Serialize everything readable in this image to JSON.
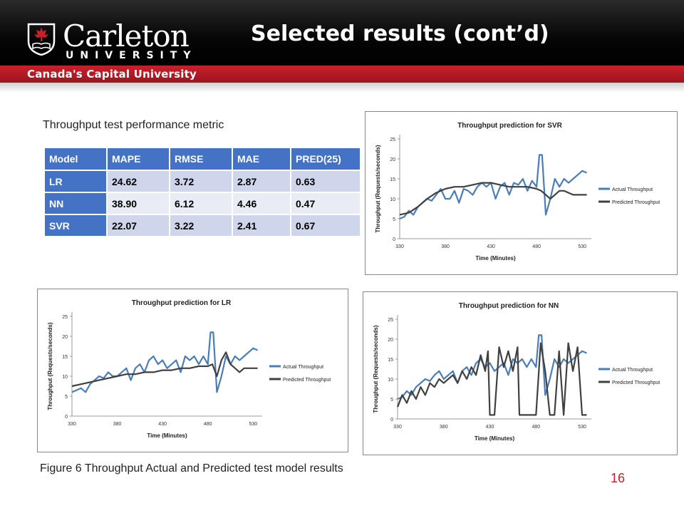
{
  "header": {
    "title": "Selected results (cont’d)",
    "logo_name": "Carleton",
    "logo_sub": "UNIVERSITY",
    "tagline": "Canada's Capital University"
  },
  "table": {
    "caption": "Throughput test performance metric",
    "headers": [
      "Model",
      "MAPE",
      "RMSE",
      "MAE",
      "PRED(25)"
    ],
    "rows": [
      [
        "LR",
        "24.62",
        "3.72",
        "2.87",
        "0.63"
      ],
      [
        "NN",
        "38.90",
        "6.12",
        "4.46",
        "0.47"
      ],
      [
        "SVR",
        "22.07",
        "3.22",
        "2.41",
        "0.67"
      ]
    ]
  },
  "figure_caption": "Figure 6 Throughput Actual and Predicted test model results",
  "page_number": "16",
  "colors": {
    "actual": "#4a7ebb",
    "predicted": "#404040",
    "accent": "#c8202b",
    "table_header": "#4472c4"
  },
  "chart_data": [
    {
      "type": "line",
      "title": "Throughput prediction for SVR",
      "xlabel": "Time (Minutes)",
      "ylabel": "Throughput  (Requests/seconds)",
      "xlim": [
        330,
        540
      ],
      "ylim": [
        0,
        25
      ],
      "xticks": [
        330,
        380,
        430,
        480,
        530
      ],
      "yticks": [
        0,
        5,
        10,
        15,
        20,
        25
      ],
      "legend_position": "right",
      "series": [
        {
          "name": "Actual Throughput",
          "x": [
            330,
            335,
            340,
            345,
            350,
            355,
            360,
            365,
            370,
            375,
            380,
            385,
            390,
            395,
            400,
            405,
            410,
            415,
            420,
            425,
            430,
            435,
            440,
            445,
            450,
            455,
            460,
            465,
            470,
            475,
            480,
            483,
            486,
            490,
            495,
            500,
            505,
            510,
            515,
            520,
            525,
            530,
            535
          ],
          "y": [
            5,
            5.5,
            7,
            6,
            8,
            9,
            10,
            9.5,
            11,
            12.5,
            10,
            10,
            12,
            9,
            12.5,
            12,
            11,
            13,
            14,
            13,
            14,
            10,
            13,
            14,
            11,
            14,
            13.5,
            15,
            12,
            14.5,
            13,
            21,
            21,
            6,
            10,
            15,
            13,
            15,
            14,
            15,
            16,
            17,
            16.5
          ]
        },
        {
          "name": "Predicted Throughput",
          "x": [
            330,
            340,
            350,
            360,
            370,
            380,
            390,
            400,
            410,
            420,
            430,
            440,
            450,
            460,
            470,
            480,
            485,
            490,
            495,
            500,
            505,
            510,
            515,
            520,
            525,
            530,
            535
          ],
          "y": [
            6,
            6.5,
            8,
            10,
            11.5,
            12.5,
            13,
            13,
            13.5,
            14,
            14,
            13.5,
            13,
            13,
            13,
            12.5,
            12,
            11,
            10,
            11,
            12,
            12,
            11.5,
            11,
            11,
            11,
            11
          ]
        }
      ]
    },
    {
      "type": "line",
      "title": "Throughput prediction for LR",
      "xlabel": "Time (Minutes)",
      "ylabel": "Throughput  (Requests/seconds)",
      "xlim": [
        330,
        540
      ],
      "ylim": [
        0,
        25
      ],
      "xticks": [
        330,
        380,
        430,
        480,
        530
      ],
      "yticks": [
        0,
        5,
        10,
        15,
        20,
        25
      ],
      "legend_position": "right",
      "series": [
        {
          "name": "Actual Throughput",
          "x": [
            330,
            335,
            340,
            345,
            350,
            355,
            360,
            365,
            370,
            375,
            380,
            385,
            390,
            395,
            400,
            405,
            410,
            415,
            420,
            425,
            430,
            435,
            440,
            445,
            450,
            455,
            460,
            465,
            470,
            475,
            480,
            483,
            486,
            490,
            495,
            500,
            505,
            510,
            515,
            520,
            525,
            530,
            535
          ],
          "y": [
            6,
            6.5,
            7,
            6,
            8,
            9,
            10,
            9.5,
            11,
            10,
            10,
            11,
            12,
            9,
            12,
            13,
            11,
            14,
            15,
            13,
            14,
            12,
            13,
            14,
            11,
            15,
            14,
            15,
            13,
            15,
            13,
            21,
            21,
            6,
            10,
            15,
            13,
            15,
            14,
            15,
            16,
            17,
            16.5
          ]
        },
        {
          "name": "Predicted Throughput",
          "x": [
            330,
            340,
            350,
            360,
            370,
            380,
            390,
            400,
            410,
            420,
            430,
            440,
            450,
            460,
            470,
            480,
            485,
            490,
            495,
            500,
            505,
            510,
            515,
            520,
            525,
            530,
            535
          ],
          "y": [
            7.5,
            8,
            8.5,
            9,
            9.5,
            10,
            10.5,
            10.5,
            11,
            11,
            11.5,
            11.5,
            12,
            12,
            12.5,
            12.5,
            13,
            10,
            14,
            16,
            13,
            12,
            11,
            12,
            12,
            12,
            12
          ]
        }
      ]
    },
    {
      "type": "line",
      "title": "Throughput prediction for NN",
      "xlabel": "Time (Minutes)",
      "ylabel": "Throughput  (Requests/seconds)",
      "xlim": [
        330,
        540
      ],
      "ylim": [
        0,
        25
      ],
      "xticks": [
        330,
        380,
        430,
        480,
        530
      ],
      "yticks": [
        0,
        5,
        10,
        15,
        20,
        25
      ],
      "legend_position": "right",
      "series": [
        {
          "name": "Actual Throughput",
          "x": [
            330,
            335,
            340,
            345,
            350,
            355,
            360,
            365,
            370,
            375,
            380,
            385,
            390,
            395,
            400,
            405,
            410,
            415,
            420,
            425,
            430,
            435,
            440,
            445,
            450,
            455,
            460,
            465,
            470,
            475,
            480,
            483,
            486,
            490,
            495,
            500,
            505,
            510,
            515,
            520,
            525,
            530,
            535
          ],
          "y": [
            5,
            5.5,
            7,
            6,
            8,
            9,
            10,
            9.5,
            11,
            12,
            10,
            11,
            12,
            9,
            12,
            13,
            11,
            14,
            15,
            13,
            14,
            12,
            13,
            14,
            11,
            15,
            14,
            15,
            13,
            15,
            13,
            21,
            21,
            6,
            10,
            15,
            13,
            15,
            14,
            15,
            16,
            17,
            16.5
          ]
        },
        {
          "name": "Predicted Throughput",
          "x": [
            330,
            335,
            340,
            345,
            350,
            355,
            360,
            365,
            370,
            375,
            380,
            385,
            390,
            395,
            400,
            405,
            410,
            415,
            420,
            425,
            428,
            430,
            435,
            440,
            445,
            450,
            455,
            460,
            462,
            470,
            480,
            485,
            490,
            495,
            500,
            505,
            510,
            515,
            520,
            525,
            530,
            535
          ],
          "y": [
            3,
            6,
            4,
            7,
            5,
            8,
            6,
            9,
            8,
            10,
            9,
            10,
            11,
            9,
            12,
            10,
            13,
            11,
            16,
            12,
            17,
            1,
            1,
            18,
            13,
            17,
            12,
            18,
            1,
            1,
            1,
            19,
            12,
            1,
            1,
            17,
            1,
            19,
            12,
            18,
            1,
            1
          ]
        }
      ]
    }
  ]
}
